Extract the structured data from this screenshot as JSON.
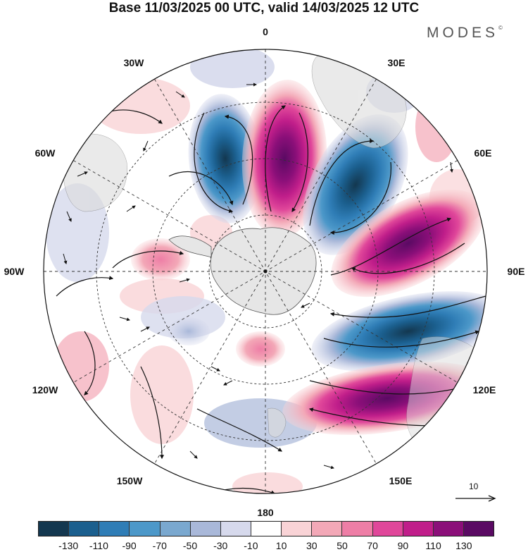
{
  "title": "Base 11/03/2025 00 UTC, valid 14/03/2025 12 UTC",
  "brand": "MODES",
  "brand_mark": "©",
  "longitude_labels": [
    "0",
    "30E",
    "60E",
    "90E",
    "120E",
    "150E",
    "180",
    "150W",
    "120W",
    "90W",
    "60W",
    "30W"
  ],
  "reference_vector": {
    "label": "10",
    "icon": "arrow-right-icon"
  },
  "colorbar": {
    "tick_labels": [
      "-130",
      "-110",
      "-90",
      "-70",
      "-50",
      "-30",
      "-10",
      "10",
      "30",
      "50",
      "70",
      "90",
      "110",
      "130"
    ],
    "colors": [
      "#13374f",
      "#1b5f8e",
      "#2f7db6",
      "#4c98c9",
      "#7aa8cf",
      "#a9b8d9",
      "#d6d9ec",
      "#ffffff",
      "#f9d3d6",
      "#f3a8b7",
      "#ee7ea6",
      "#e0479a",
      "#c01e8a",
      "#8b0f79",
      "#5a0a63"
    ]
  }
}
